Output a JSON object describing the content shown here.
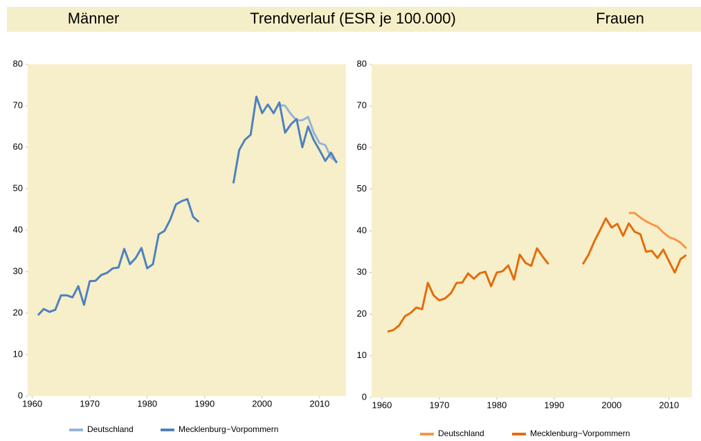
{
  "header": {
    "left": "Männer",
    "title": "Trendverlauf (ESR je 100.000)",
    "right": "Frauen"
  },
  "chart_data": [
    {
      "type": "line",
      "x": [
        1961,
        1962,
        1963,
        1964,
        1965,
        1966,
        1967,
        1968,
        1969,
        1970,
        1971,
        1972,
        1973,
        1974,
        1975,
        1976,
        1977,
        1978,
        1979,
        1980,
        1981,
        1982,
        1983,
        1984,
        1985,
        1986,
        1987,
        1988,
        1989,
        1990,
        1991,
        1992,
        1993,
        1994,
        1995,
        1996,
        1997,
        1998,
        1999,
        2000,
        2001,
        2002,
        2003,
        2004,
        2005,
        2006,
        2007,
        2008,
        2009,
        2010,
        2011,
        2012,
        2013
      ],
      "series": [
        {
          "name": "Deutschland",
          "color": "#95b3d7",
          "values": [
            null,
            null,
            null,
            null,
            null,
            null,
            null,
            null,
            null,
            null,
            null,
            null,
            null,
            null,
            null,
            null,
            null,
            null,
            null,
            null,
            null,
            null,
            null,
            null,
            null,
            null,
            null,
            null,
            null,
            null,
            null,
            null,
            null,
            null,
            null,
            null,
            null,
            null,
            null,
            null,
            null,
            null,
            70.2,
            70,
            68,
            66.5,
            66.5,
            67.3,
            63.5,
            61,
            60.5,
            57.5,
            56.5
          ]
        },
        {
          "name": "Mecklenburg−Vorpommern",
          "color": "#4f81bd",
          "values": [
            19.5,
            21,
            20.3,
            20.8,
            24.3,
            24.3,
            23.8,
            26.5,
            22,
            27.7,
            27.8,
            29.2,
            29.7,
            30.8,
            31,
            35.5,
            31.8,
            33.3,
            35.7,
            30.8,
            31.8,
            39,
            39.8,
            42.5,
            46.2,
            47,
            47.5,
            43.2,
            42,
            null,
            null,
            null,
            null,
            null,
            51.3,
            59.3,
            61.8,
            63,
            72.2,
            68.2,
            70.3,
            68.2,
            70.8,
            63.5,
            65.5,
            66.8,
            60,
            65,
            61.7,
            59.3,
            56.7,
            58.7,
            56.2
          ]
        }
      ],
      "xlim": [
        1959.2,
        2014.6
      ],
      "xticks": [
        1960,
        1970,
        1980,
        1990,
        2000,
        2010
      ],
      "ylim": [
        0,
        80
      ],
      "yticks": [
        0,
        10,
        20,
        30,
        40,
        50,
        60,
        70,
        80
      ],
      "grid": false,
      "legend": "bottom"
    },
    {
      "type": "line",
      "x": [
        1961,
        1962,
        1963,
        1964,
        1965,
        1966,
        1967,
        1968,
        1969,
        1970,
        1971,
        1972,
        1973,
        1974,
        1975,
        1976,
        1977,
        1978,
        1979,
        1980,
        1981,
        1982,
        1983,
        1984,
        1985,
        1986,
        1987,
        1988,
        1989,
        1990,
        1991,
        1992,
        1993,
        1994,
        1995,
        1996,
        1997,
        1998,
        1999,
        2000,
        2001,
        2002,
        2003,
        2004,
        2005,
        2006,
        2007,
        2008,
        2009,
        2010,
        2011,
        2012,
        2013
      ],
      "series": [
        {
          "name": "Deutschland",
          "color": "#f79646",
          "values": [
            null,
            null,
            null,
            null,
            null,
            null,
            null,
            null,
            null,
            null,
            null,
            null,
            null,
            null,
            null,
            null,
            null,
            null,
            null,
            null,
            null,
            null,
            null,
            null,
            null,
            null,
            null,
            null,
            null,
            null,
            null,
            null,
            null,
            null,
            null,
            null,
            null,
            null,
            null,
            null,
            null,
            null,
            44.3,
            44.3,
            43.2,
            42.3,
            41.6,
            41,
            39.6,
            38.5,
            38,
            37.2,
            35.8
          ]
        },
        {
          "name": "Mecklenburg−Vorpommern",
          "color": "#e46c0a",
          "values": [
            15.8,
            16.2,
            17.3,
            19.5,
            20.3,
            21.6,
            21.2,
            27.5,
            24.5,
            23.3,
            23.8,
            25,
            27.5,
            27.6,
            29.8,
            28.5,
            29.8,
            30.2,
            26.7,
            30,
            30.3,
            31.7,
            28.3,
            34.3,
            32.3,
            31.6,
            35.8,
            33.8,
            32,
            null,
            null,
            null,
            null,
            null,
            32,
            34.3,
            37.5,
            40.2,
            43,
            40.8,
            41.7,
            38.8,
            41.8,
            39.8,
            39.2,
            35,
            35.2,
            33.5,
            35.5,
            32.7,
            30,
            33.2,
            34.2
          ]
        }
      ],
      "xlim": [
        1958.2,
        2014
      ],
      "xticks": [
        1960,
        1970,
        1980,
        1990,
        2000,
        2010
      ],
      "ylim": [
        0,
        80
      ],
      "yticks": [
        0,
        10,
        20,
        30,
        40,
        50,
        60,
        70,
        80
      ],
      "grid": false,
      "legend": "bottom"
    }
  ]
}
